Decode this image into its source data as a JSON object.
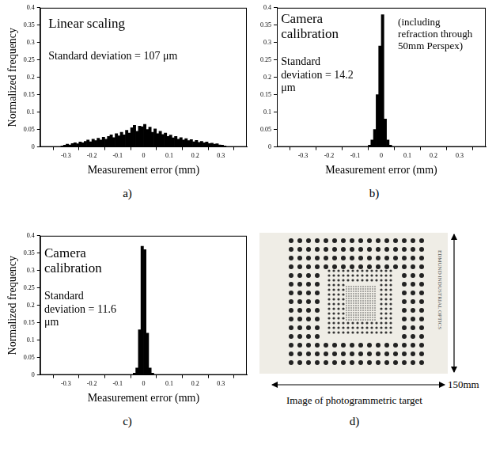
{
  "chart_data": [
    {
      "type": "histogram",
      "label": "a)",
      "x_label": "Measurement error (mm)",
      "y_label": "Normalized frequency",
      "annotations": [
        "Linear scaling",
        "Standard deviation = 107 μm"
      ],
      "bins": [
        -0.32,
        -0.31,
        -0.3,
        -0.29,
        -0.28,
        -0.27,
        -0.26,
        -0.25,
        -0.24,
        -0.23,
        -0.22,
        -0.21,
        -0.2,
        -0.19,
        -0.18,
        -0.17,
        -0.16,
        -0.15,
        -0.14,
        -0.13,
        -0.12,
        -0.11,
        -0.1,
        -0.09,
        -0.08,
        -0.07,
        -0.06,
        -0.05,
        -0.04,
        -0.03,
        -0.02,
        -0.01,
        0,
        0.01,
        0.02,
        0.03,
        0.04,
        0.05,
        0.06,
        0.07,
        0.08,
        0.09,
        0.1,
        0.11,
        0.12,
        0.13,
        0.14,
        0.15,
        0.16,
        0.17,
        0.18,
        0.19,
        0.2,
        0.21,
        0.22,
        0.23,
        0.24,
        0.25,
        0.26,
        0.27,
        0.28,
        0.29,
        0.3,
        0.31,
        0.32
      ],
      "values": [
        0.003,
        0.005,
        0.008,
        0.006,
        0.01,
        0.012,
        0.009,
        0.014,
        0.012,
        0.016,
        0.02,
        0.015,
        0.022,
        0.018,
        0.025,
        0.02,
        0.028,
        0.022,
        0.03,
        0.035,
        0.027,
        0.038,
        0.032,
        0.042,
        0.035,
        0.048,
        0.04,
        0.055,
        0.062,
        0.045,
        0.06,
        0.058,
        0.065,
        0.05,
        0.057,
        0.042,
        0.052,
        0.038,
        0.045,
        0.036,
        0.04,
        0.03,
        0.034,
        0.026,
        0.03,
        0.022,
        0.027,
        0.02,
        0.024,
        0.018,
        0.021,
        0.015,
        0.019,
        0.013,
        0.016,
        0.012,
        0.014,
        0.01,
        0.011,
        0.008,
        0.009,
        0.006,
        0.005,
        0.003
      ],
      "color": "#000000",
      "xlim": [
        -0.4,
        0.4
      ],
      "xticks": [
        -0.3,
        -0.2,
        -0.1,
        0,
        0.1,
        0.2,
        0.3
      ],
      "ylim": [
        0,
        0.4
      ],
      "yticks": [
        0,
        0.05,
        0.1,
        0.15,
        0.2,
        0.25,
        0.3,
        0.35,
        0.4
      ],
      "grid": false
    },
    {
      "type": "histogram",
      "label": "b)",
      "x_label": "Measurement error (mm)",
      "annotations": [
        "Camera calibration",
        "(including refraction through 50mm Perspex)",
        "Standard deviation = 14.2 μm"
      ],
      "bins": [
        -0.05,
        -0.04,
        -0.03,
        -0.02,
        -0.01,
        0,
        0.01,
        0.02,
        0.03,
        0.04
      ],
      "values": [
        0.005,
        0.02,
        0.05,
        0.15,
        0.29,
        0.38,
        0.08,
        0.02,
        0.005
      ],
      "color": "#000000",
      "xlim": [
        -0.4,
        0.4
      ],
      "xticks": [
        -0.3,
        -0.2,
        -0.1,
        0,
        0.1,
        0.2,
        0.3
      ],
      "ylim": [
        0,
        0.4
      ],
      "yticks": [
        0,
        0.05,
        0.1,
        0.15,
        0.2,
        0.25,
        0.3,
        0.35,
        0.4
      ],
      "grid": false
    },
    {
      "type": "histogram",
      "label": "c)",
      "x_label": "Measurement error (mm)",
      "y_label": "Normalized frequency",
      "annotations": [
        "Camera calibration",
        "Standard deviation = 11.6 μm"
      ],
      "bins": [
        -0.04,
        -0.03,
        -0.02,
        -0.01,
        0,
        0.01,
        0.02,
        0.03,
        0.04
      ],
      "values": [
        0.005,
        0.02,
        0.13,
        0.37,
        0.36,
        0.12,
        0.02,
        0.005
      ],
      "color": "#000000",
      "xlim": [
        -0.4,
        0.4
      ],
      "xticks": [
        -0.3,
        -0.2,
        -0.1,
        0,
        0.1,
        0.2,
        0.3
      ],
      "ylim": [
        0,
        0.4
      ],
      "yticks": [
        0,
        0.05,
        0.1,
        0.15,
        0.2,
        0.25,
        0.3,
        0.35,
        0.4
      ],
      "grid": false
    }
  ],
  "image": {
    "label": "d)",
    "caption": "Image of photogrammetric target",
    "scale_label": "150mm",
    "maker_text": "EDMUND INDUSTRIAL OPTICS"
  }
}
